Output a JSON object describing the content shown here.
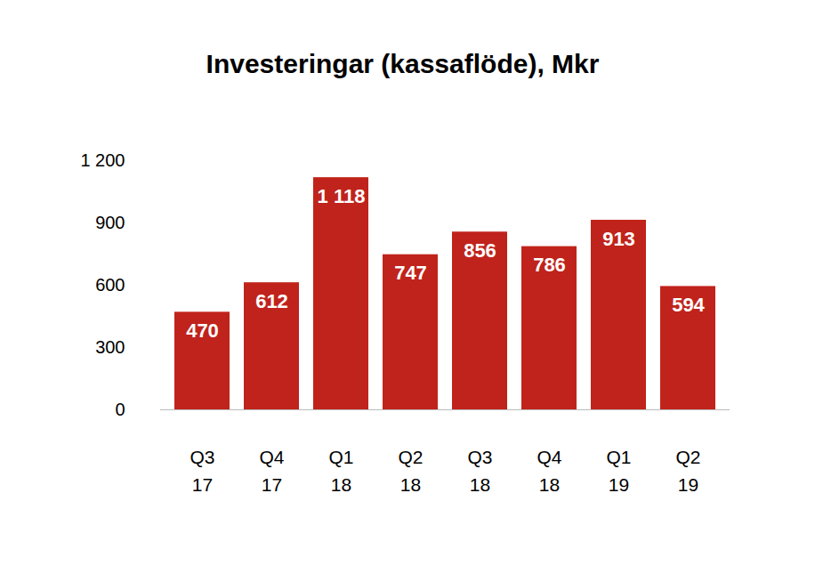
{
  "chart_data": {
    "type": "bar",
    "title": "Investeringar (kassaflöde), Mkr",
    "categories": [
      "Q3\n17",
      "Q4\n17",
      "Q1\n18",
      "Q2\n18",
      "Q3\n18",
      "Q4\n18",
      "Q1\n19",
      "Q2\n19"
    ],
    "values": [
      470,
      612,
      1118,
      747,
      856,
      786,
      913,
      594
    ],
    "value_labels": [
      "470",
      "612",
      "1 118",
      "747",
      "856",
      "786",
      "913",
      "594"
    ],
    "color": "#c0231b",
    "ylim": [
      0,
      1200
    ],
    "yticks": [
      0,
      300,
      600,
      900,
      {
        "value": 1200,
        "label": "1 200"
      }
    ],
    "grid": false,
    "data_labels": true
  }
}
